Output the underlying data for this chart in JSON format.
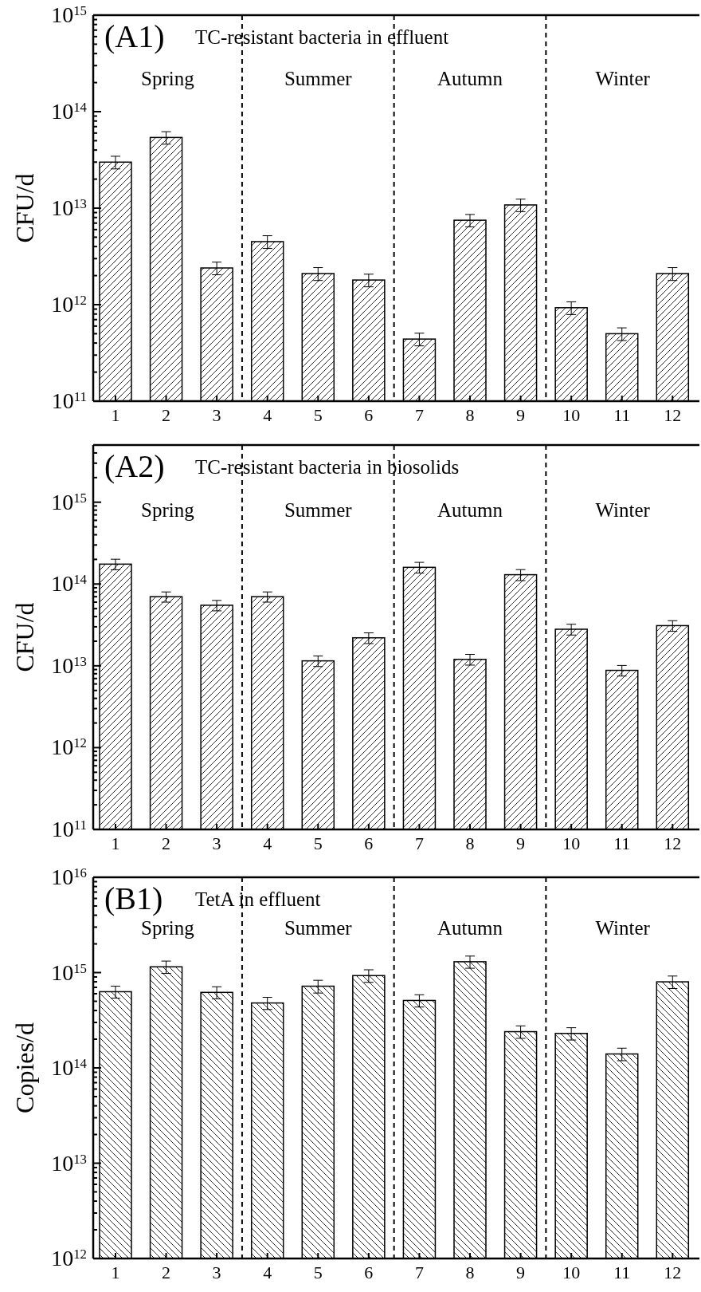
{
  "chart_data": [
    {
      "type": "bar",
      "title": "(A1)",
      "subtitle": "TC-resistant bacteria in effluent",
      "ylabel": "CFU/d",
      "log": true,
      "x": [
        1,
        2,
        3,
        4,
        5,
        6,
        7,
        8,
        9,
        10,
        11,
        12
      ],
      "xlim": [
        0.56,
        12.53
      ],
      "xticks": [
        1,
        2,
        3,
        4,
        5,
        6,
        7,
        8,
        9,
        10,
        11,
        12
      ],
      "ylim": [
        100000000000.0,
        1000000000000000.0
      ],
      "yticks": [
        {
          "value": 100000000000.0,
          "label": "10$^{11}$"
        },
        {
          "value": 1000000000000.0,
          "label": "10$^{12}$"
        },
        {
          "value": 10000000000000.0,
          "label": "10$^{13}$"
        },
        {
          "value": 100000000000000.0,
          "label": "10$^{14}$"
        },
        {
          "value": 1000000000000000.0,
          "label": "10$^{15}$"
        },
        {
          "value": 200000000000.0,
          "label": null
        },
        {
          "value": 300000000000.0,
          "label": null
        },
        {
          "value": 400000000000.0,
          "label": null
        },
        {
          "value": 500000000000.0,
          "label": null
        },
        {
          "value": 600000000000.0,
          "label": null
        },
        {
          "value": 700000000000.0,
          "label": null
        },
        {
          "value": 800000000000.0,
          "label": null
        },
        {
          "value": 900000000000.0,
          "label": null
        },
        {
          "value": 2000000000000.0,
          "label": null
        },
        {
          "value": 3000000000000.0,
          "label": null
        },
        {
          "value": 4000000000000.0,
          "label": null
        },
        {
          "value": 5000000000000.0,
          "label": null
        },
        {
          "value": 6000000000000.0,
          "label": null
        },
        {
          "value": 7000000000000.0,
          "label": null
        },
        {
          "value": 8000000000000.0,
          "label": null
        },
        {
          "value": 9000000000000.0,
          "label": null
        },
        {
          "value": 20000000000000.0,
          "label": null
        },
        {
          "value": 30000000000000.0,
          "label": null
        },
        {
          "value": 40000000000000.0,
          "label": null
        },
        {
          "value": 50000000000000.0,
          "label": null
        },
        {
          "value": 60000000000000.0,
          "label": null
        },
        {
          "value": 70000000000000.0,
          "label": null
        },
        {
          "value": 80000000000000.0,
          "label": null
        },
        {
          "value": 90000000000000.0,
          "label": null
        },
        {
          "value": 200000000000000.0,
          "label": null
        },
        {
          "value": 300000000000000.0,
          "label": null
        },
        {
          "value": 400000000000000.0,
          "label": null
        },
        {
          "value": 500000000000000.0,
          "label": null
        },
        {
          "value": 600000000000000.0,
          "label": null
        },
        {
          "value": 700000000000000.0,
          "label": null
        },
        {
          "value": 800000000000000.0,
          "label": null
        },
        {
          "value": 900000000000000.0,
          "label": null
        }
      ],
      "values": [
        30000000000000.0,
        54000000000000.0,
        2400000000000.0,
        4500000000000.0,
        2100000000000.0,
        1800000000000.0,
        440000000000.0,
        7500000000000.0,
        10800000000000.0,
        930000000000.0,
        500000000000.0,
        2100000000000.0
      ],
      "errors": [
        4500000000000.0,
        8000000000000.0,
        360000000000.0,
        680000000000.0,
        320000000000.0,
        270000000000.0,
        66000000000.0,
        1100000000000.0,
        1600000000000.0,
        140000000000.0,
        75000000000.0,
        320000000000.0
      ],
      "color": "#000000",
      "ref_lines": [
        {
          "axis": "x",
          "value": 3.5,
          "line_style": "dashed"
        },
        {
          "axis": "x",
          "value": 6.5,
          "line_style": "dashed"
        },
        {
          "axis": "x",
          "value": 9.5,
          "line_style": "dashed"
        }
      ],
      "annotations": [
        "Spring",
        "Summer",
        "Autumn",
        "Winter"
      ]
    },
    {
      "type": "bar",
      "title": "(A2)",
      "subtitle": "TC-resistant bacteria in biosolids",
      "ylabel": "CFU/d",
      "log": true,
      "x": [
        1,
        2,
        3,
        4,
        5,
        6,
        7,
        8,
        9,
        10,
        11,
        12
      ],
      "xlim": [
        0.56,
        12.53
      ],
      "xticks": [
        1,
        2,
        3,
        4,
        5,
        6,
        7,
        8,
        9,
        10,
        11,
        12
      ],
      "ylim": [
        100000000000.0,
        5000000000000000.0
      ],
      "yticks": [
        {
          "value": 100000000000.0,
          "label": "10$^{11}$"
        },
        {
          "value": 1000000000000.0,
          "label": "10$^{12}$"
        },
        {
          "value": 10000000000000.0,
          "label": "10$^{13}$"
        },
        {
          "value": 100000000000000.0,
          "label": "10$^{14}$"
        },
        {
          "value": 1000000000000000.0,
          "label": "10$^{15}$"
        },
        {
          "value": 200000000000.0,
          "label": null
        },
        {
          "value": 300000000000.0,
          "label": null
        },
        {
          "value": 400000000000.0,
          "label": null
        },
        {
          "value": 500000000000.0,
          "label": null
        },
        {
          "value": 600000000000.0,
          "label": null
        },
        {
          "value": 700000000000.0,
          "label": null
        },
        {
          "value": 800000000000.0,
          "label": null
        },
        {
          "value": 900000000000.0,
          "label": null
        },
        {
          "value": 2000000000000.0,
          "label": null
        },
        {
          "value": 3000000000000.0,
          "label": null
        },
        {
          "value": 4000000000000.0,
          "label": null
        },
        {
          "value": 5000000000000.0,
          "label": null
        },
        {
          "value": 6000000000000.0,
          "label": null
        },
        {
          "value": 7000000000000.0,
          "label": null
        },
        {
          "value": 8000000000000.0,
          "label": null
        },
        {
          "value": 9000000000000.0,
          "label": null
        },
        {
          "value": 20000000000000.0,
          "label": null
        },
        {
          "value": 30000000000000.0,
          "label": null
        },
        {
          "value": 40000000000000.0,
          "label": null
        },
        {
          "value": 50000000000000.0,
          "label": null
        },
        {
          "value": 60000000000000.0,
          "label": null
        },
        {
          "value": 70000000000000.0,
          "label": null
        },
        {
          "value": 80000000000000.0,
          "label": null
        },
        {
          "value": 90000000000000.0,
          "label": null
        },
        {
          "value": 200000000000000.0,
          "label": null
        },
        {
          "value": 300000000000000.0,
          "label": null
        },
        {
          "value": 400000000000000.0,
          "label": null
        },
        {
          "value": 500000000000000.0,
          "label": null
        },
        {
          "value": 600000000000000.0,
          "label": null
        },
        {
          "value": 700000000000000.0,
          "label": null
        },
        {
          "value": 800000000000000.0,
          "label": null
        },
        {
          "value": 900000000000000.0,
          "label": null
        },
        {
          "value": 2000000000000000.0,
          "label": null
        },
        {
          "value": 3000000000000000.0,
          "label": null
        },
        {
          "value": 4000000000000000.0,
          "label": null
        }
      ],
      "values": [
        175000000000000.0,
        70000000000000.0,
        55000000000000.0,
        70000000000000.0,
        11500000000000.0,
        22000000000000.0,
        160000000000000.0,
        12000000000000.0,
        130000000000000.0,
        28000000000000.0,
        8800000000000.0,
        31000000000000.0
      ],
      "errors": [
        26000000000000.0,
        10000000000000.0,
        8000000000000.0,
        10000000000000.0,
        1700000000000.0,
        3300000000000.0,
        24000000000000.0,
        1800000000000.0,
        20000000000000.0,
        4200000000000.0,
        1300000000000.0,
        4600000000000.0
      ],
      "color": "#000000",
      "ref_lines": [
        {
          "axis": "x",
          "value": 3.5,
          "line_style": "dashed"
        },
        {
          "axis": "x",
          "value": 6.5,
          "line_style": "dashed"
        },
        {
          "axis": "x",
          "value": 9.5,
          "line_style": "dashed"
        }
      ],
      "annotations": [
        "Spring",
        "Summer",
        "Autumn",
        "Winter"
      ]
    },
    {
      "type": "bar",
      "title": "(B1)",
      "subtitle": "TetA in effluent",
      "ylabel": "Copies/d",
      "log": true,
      "x": [
        1,
        2,
        3,
        4,
        5,
        6,
        7,
        8,
        9,
        10,
        11,
        12
      ],
      "xlim": [
        0.56,
        12.53
      ],
      "xticks": [
        1,
        2,
        3,
        4,
        5,
        6,
        7,
        8,
        9,
        10,
        11,
        12
      ],
      "ylim": [
        1000000000000.0,
        1e+16
      ],
      "yticks": [
        {
          "value": 1000000000000.0,
          "label": "10$^{12}$"
        },
        {
          "value": 10000000000000.0,
          "label": "10$^{13}$"
        },
        {
          "value": 100000000000000.0,
          "label": "10$^{14}$"
        },
        {
          "value": 1000000000000000.0,
          "label": "10$^{15}$"
        },
        {
          "value": 1e+16,
          "label": "10$^{16}$"
        },
        {
          "value": 2000000000000.0,
          "label": null
        },
        {
          "value": 3000000000000.0,
          "label": null
        },
        {
          "value": 4000000000000.0,
          "label": null
        },
        {
          "value": 5000000000000.0,
          "label": null
        },
        {
          "value": 6000000000000.0,
          "label": null
        },
        {
          "value": 7000000000000.0,
          "label": null
        },
        {
          "value": 8000000000000.0,
          "label": null
        },
        {
          "value": 9000000000000.0,
          "label": null
        },
        {
          "value": 20000000000000.0,
          "label": null
        },
        {
          "value": 30000000000000.0,
          "label": null
        },
        {
          "value": 40000000000000.0,
          "label": null
        },
        {
          "value": 50000000000000.0,
          "label": null
        },
        {
          "value": 60000000000000.0,
          "label": null
        },
        {
          "value": 70000000000000.0,
          "label": null
        },
        {
          "value": 80000000000000.0,
          "label": null
        },
        {
          "value": 90000000000000.0,
          "label": null
        },
        {
          "value": 200000000000000.0,
          "label": null
        },
        {
          "value": 300000000000000.0,
          "label": null
        },
        {
          "value": 400000000000000.0,
          "label": null
        },
        {
          "value": 500000000000000.0,
          "label": null
        },
        {
          "value": 600000000000000.0,
          "label": null
        },
        {
          "value": 700000000000000.0,
          "label": null
        },
        {
          "value": 800000000000000.0,
          "label": null
        },
        {
          "value": 900000000000000.0,
          "label": null
        },
        {
          "value": 2000000000000000.0,
          "label": null
        },
        {
          "value": 3000000000000000.0,
          "label": null
        },
        {
          "value": 4000000000000000.0,
          "label": null
        },
        {
          "value": 5000000000000000.0,
          "label": null
        },
        {
          "value": 6000000000000000.0,
          "label": null
        },
        {
          "value": 7000000000000000.0,
          "label": null
        },
        {
          "value": 8000000000000000.0,
          "label": null
        },
        {
          "value": 9000000000000000.0,
          "label": null
        }
      ],
      "values": [
        630000000000000.0,
        1150000000000000.0,
        620000000000000.0,
        480000000000000.0,
        720000000000000.0,
        930000000000000.0,
        510000000000000.0,
        1300000000000000.0,
        240000000000000.0,
        230000000000000.0,
        140000000000000.0,
        800000000000000.0
      ],
      "errors": [
        90000000000000.0,
        170000000000000.0,
        90000000000000.0,
        70000000000000.0,
        110000000000000.0,
        140000000000000.0,
        75000000000000.0,
        190000000000000.0,
        36000000000000.0,
        34000000000000.0,
        21000000000000.0,
        120000000000000.0
      ],
      "color": "#000000",
      "ref_lines": [
        {
          "axis": "x",
          "value": 3.5,
          "line_style": "dashed"
        },
        {
          "axis": "x",
          "value": 6.5,
          "line_style": "dashed"
        },
        {
          "axis": "x",
          "value": 9.5,
          "line_style": "dashed"
        }
      ],
      "annotations": [
        "Spring",
        "Summer",
        "Autumn",
        "Winter"
      ]
    }
  ]
}
